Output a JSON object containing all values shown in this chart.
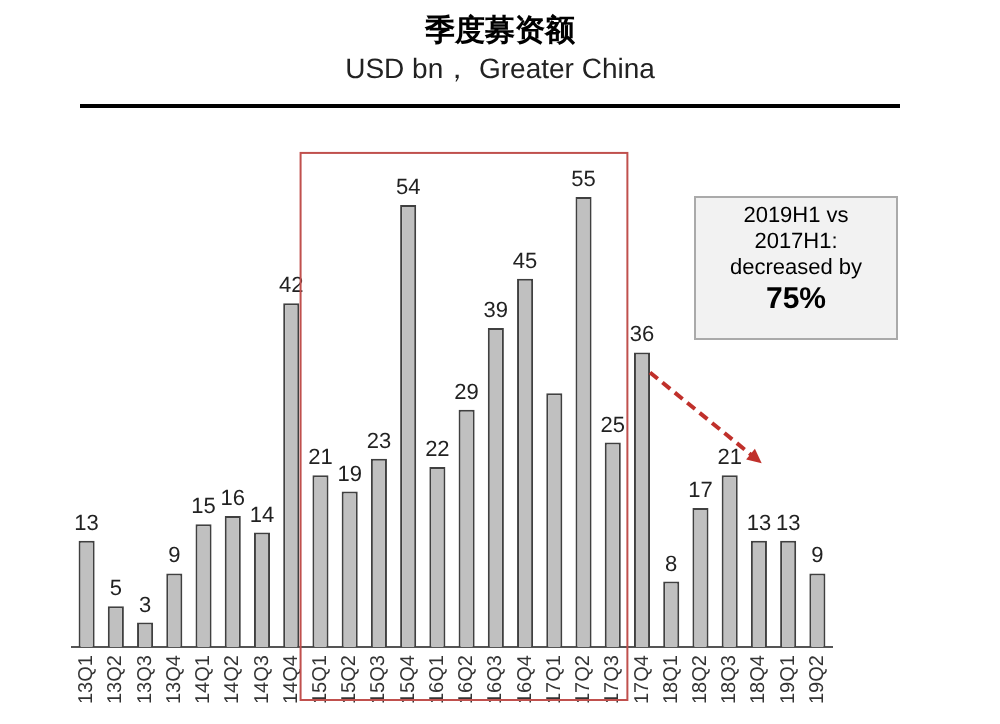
{
  "chart_data": {
    "type": "bar",
    "title": "季度募资额",
    "subtitle": "USD bn， Greater China",
    "categories": [
      "13Q1",
      "13Q2",
      "13Q3",
      "13Q4",
      "14Q1",
      "14Q2",
      "14Q3",
      "14Q4",
      "15Q1",
      "15Q2",
      "15Q3",
      "15Q4",
      "16Q1",
      "16Q2",
      "16Q3",
      "16Q4",
      "17Q1",
      "17Q2",
      "17Q3",
      "17Q4",
      "18Q1",
      "18Q2",
      "18Q3",
      "18Q4",
      "19Q1",
      "19Q2"
    ],
    "values": [
      13,
      5,
      3,
      9,
      15,
      16,
      14,
      42,
      21,
      19,
      23,
      54,
      22,
      29,
      39,
      45,
      31,
      55,
      25,
      36,
      8,
      17,
      21,
      13,
      13,
      9
    ],
    "value_labels": [
      "13",
      "5",
      "3",
      "9",
      "15",
      "16",
      "14",
      "42",
      "21",
      "19",
      "23",
      "54",
      "22",
      "29",
      "39",
      "45",
      null,
      "55",
      "25",
      "36",
      "8",
      "17",
      "21",
      "13",
      "13",
      "9"
    ],
    "color": "#c0c0c0",
    "annotations": [
      "2019H1 vs\n2017H1:\ndecreased by",
      "75%"
    ],
    "grid": false,
    "legend": false
  }
}
